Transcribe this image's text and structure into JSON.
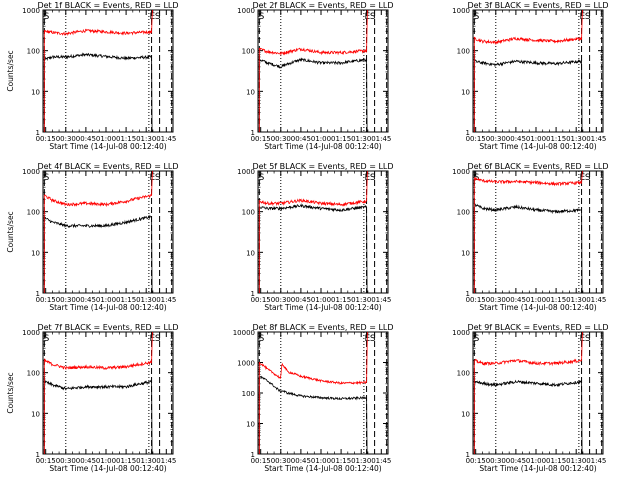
{
  "figure": {
    "xlabel": "Start Time (14-Jul-08 00:12:40)",
    "ylabel": "Counts/sec",
    "x_ticks": [
      "00:15",
      "00:30",
      "00:45",
      "01:00",
      "01:15",
      "01:30",
      "01:45"
    ],
    "y_ticks": [
      "1",
      "10",
      "100",
      "1000"
    ],
    "y_ticks_extended": [
      "1",
      "10",
      "100",
      "1000",
      "10000"
    ],
    "event_markers": {
      "start": "S",
      "end": "E",
      "end_s": "S"
    }
  },
  "colors": {
    "events": "#000000",
    "lld": "#ff0000",
    "axes": "#000000"
  },
  "chart_data": [
    {
      "type": "line",
      "title": "Det 1f BLACK = Events, RED = LLD",
      "yscale": "log",
      "ylim": [
        1,
        1000
      ],
      "x_range_min": [
        13,
        110
      ],
      "series": [
        {
          "name": "Events",
          "x": [
            14,
            20,
            30,
            45,
            60,
            75,
            94
          ],
          "values": [
            60,
            70,
            70,
            80,
            72,
            65,
            70
          ]
        },
        {
          "name": "LLD",
          "x": [
            14,
            20,
            30,
            45,
            60,
            75,
            94
          ],
          "values": [
            300,
            280,
            260,
            310,
            290,
            270,
            290
          ]
        }
      ]
    },
    {
      "type": "line",
      "title": "Det 2f BLACK = Events, RED = LLD",
      "yscale": "log",
      "ylim": [
        1,
        1000
      ],
      "x_range_min": [
        13,
        110
      ],
      "series": [
        {
          "name": "Events",
          "x": [
            14,
            20,
            30,
            45,
            60,
            75,
            94
          ],
          "values": [
            60,
            50,
            40,
            60,
            50,
            50,
            60
          ]
        },
        {
          "name": "LLD",
          "x": [
            14,
            20,
            30,
            45,
            60,
            75,
            94
          ],
          "values": [
            110,
            95,
            85,
            110,
            90,
            90,
            100
          ]
        }
      ]
    },
    {
      "type": "line",
      "title": "Det 3f BLACK = Events, RED = LLD",
      "yscale": "log",
      "ylim": [
        1,
        1000
      ],
      "x_range_min": [
        13,
        110
      ],
      "series": [
        {
          "name": "Events",
          "x": [
            14,
            20,
            30,
            45,
            60,
            75,
            94
          ],
          "values": [
            55,
            50,
            45,
            55,
            50,
            48,
            55
          ]
        },
        {
          "name": "LLD",
          "x": [
            14,
            20,
            30,
            45,
            60,
            75,
            94
          ],
          "values": [
            200,
            170,
            160,
            200,
            180,
            170,
            200
          ]
        }
      ]
    },
    {
      "type": "line",
      "title": "Det 4f BLACK = Events, RED = LLD",
      "yscale": "log",
      "ylim": [
        1,
        1000
      ],
      "x_range_min": [
        13,
        110
      ],
      "series": [
        {
          "name": "Events",
          "x": [
            14,
            20,
            30,
            45,
            60,
            75,
            94
          ],
          "values": [
            70,
            55,
            45,
            45,
            45,
            55,
            75
          ]
        },
        {
          "name": "LLD",
          "x": [
            14,
            20,
            30,
            45,
            60,
            75,
            94
          ],
          "values": [
            250,
            190,
            150,
            160,
            150,
            180,
            250
          ]
        }
      ]
    },
    {
      "type": "line",
      "title": "Det 5f BLACK = Events, RED = LLD",
      "yscale": "log",
      "ylim": [
        1,
        1000
      ],
      "x_range_min": [
        13,
        110
      ],
      "series": [
        {
          "name": "Events",
          "x": [
            14,
            20,
            30,
            45,
            60,
            75,
            94
          ],
          "values": [
            130,
            120,
            120,
            140,
            120,
            110,
            130
          ]
        },
        {
          "name": "LLD",
          "x": [
            14,
            20,
            30,
            45,
            60,
            75,
            94
          ],
          "values": [
            180,
            160,
            160,
            190,
            160,
            150,
            180
          ]
        }
      ]
    },
    {
      "type": "line",
      "title": "Det 6f BLACK = Events, RED = LLD",
      "yscale": "log",
      "ylim": [
        1,
        1000
      ],
      "x_range_min": [
        13,
        110
      ],
      "series": [
        {
          "name": "Events",
          "x": [
            14,
            20,
            30,
            45,
            60,
            75,
            94
          ],
          "values": [
            150,
            120,
            110,
            130,
            110,
            100,
            110
          ]
        },
        {
          "name": "LLD",
          "x": [
            14,
            20,
            30,
            45,
            60,
            75,
            94
          ],
          "values": [
            650,
            580,
            540,
            550,
            520,
            480,
            520
          ]
        }
      ]
    },
    {
      "type": "line",
      "title": "Det 7f BLACK = Events, RED = LLD",
      "yscale": "log",
      "ylim": [
        1,
        1000
      ],
      "x_range_min": [
        13,
        110
      ],
      "series": [
        {
          "name": "Events",
          "x": [
            14,
            20,
            30,
            45,
            60,
            75,
            94
          ],
          "values": [
            60,
            50,
            40,
            45,
            45,
            45,
            60
          ]
        },
        {
          "name": "LLD",
          "x": [
            14,
            20,
            30,
            45,
            60,
            75,
            94
          ],
          "values": [
            200,
            160,
            130,
            140,
            130,
            140,
            180
          ]
        }
      ]
    },
    {
      "type": "line",
      "title": "Det 8f BLACK = Events, RED = LLD",
      "yscale": "log",
      "ylim": [
        1,
        10000
      ],
      "x_range_min": [
        13,
        110
      ],
      "series": [
        {
          "name": "Events",
          "x": [
            14,
            20,
            26,
            30,
            31,
            35,
            45,
            60,
            75,
            94
          ],
          "values": [
            350,
            250,
            150,
            110,
            120,
            100,
            80,
            70,
            65,
            70
          ]
        },
        {
          "name": "LLD",
          "x": [
            14,
            20,
            26,
            30,
            31,
            35,
            45,
            60,
            75,
            94
          ],
          "values": [
            1000,
            600,
            400,
            300,
            900,
            500,
            350,
            250,
            210,
            220
          ]
        }
      ]
    },
    {
      "type": "line",
      "title": "Det 9f BLACK = Events, RED = LLD",
      "yscale": "log",
      "ylim": [
        1,
        1000
      ],
      "x_range_min": [
        13,
        110
      ],
      "series": [
        {
          "name": "Events",
          "x": [
            14,
            20,
            30,
            45,
            60,
            75,
            94
          ],
          "values": [
            60,
            55,
            50,
            60,
            55,
            50,
            60
          ]
        },
        {
          "name": "LLD",
          "x": [
            14,
            20,
            30,
            45,
            60,
            75,
            94
          ],
          "values": [
            200,
            170,
            170,
            200,
            170,
            170,
            200
          ]
        }
      ]
    }
  ]
}
